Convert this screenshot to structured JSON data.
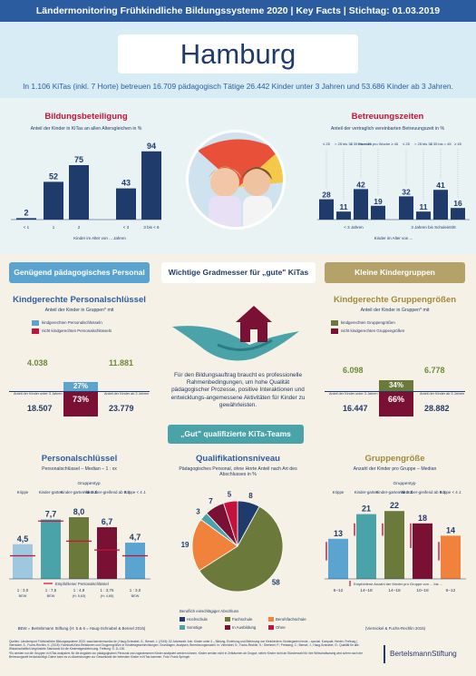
{
  "topbar": {
    "text": "Ländermonitoring Frühkindliche Bildungssysteme 2020  |  Key Facts  |  Stichtag: 01.03.2019"
  },
  "title": "Hamburg",
  "intro": "In 1.106 KiTas (inkl. 7 Horte) betreuen 16.709 pädagogisch Tätige 26.442 Kinder unter 3 Jahren und 53.686 Kinder ab 3 Jahren.",
  "colors": {
    "navy": "#1f3b6b",
    "blue": "#2b5ca0",
    "teal": "#4aa3a8",
    "green": "#5f8a3a",
    "olive": "#6b7a3a",
    "red": "#c4133a",
    "orange": "#f0823c",
    "darkred": "#7a1034",
    "ochre": "#b5a269",
    "sky": "#5aa4cf"
  },
  "bildungsbeteiligung": {
    "title": "Bildungsbeteiligung",
    "subtitle": "Anteil der Kinder in KiTas an allen Altersgleichen in %",
    "xlabel": "Kinder im Alter von ... Jahren",
    "tick_labels": [
      "< 1",
      "1",
      "2",
      "< 3",
      "3 bis < 6"
    ]
  },
  "betreuungszeiten": {
    "title": "Betreuungszeiten",
    "subtitle": "Anteil der vertraglich vereinbarten Betreuungszeit in %",
    "header_labels": [
      "≤ 25",
      "> 25 bis 35",
      "> 35 bis < 45",
      "Stunden pro Woche ≥ 45"
    ],
    "header_labels_right": [
      "≤ 25",
      "> 25 bis 35",
      "> 35 bis < 45",
      "≥ 45"
    ],
    "group_labels": [
      "< 3 Jahren",
      "3 Jahren bis Schuleintritt"
    ],
    "xlabel": "Kinder im Alter von ..."
  },
  "pills": {
    "left": "Genügend pädagogisches Personal",
    "middle": "Wichtige Gradmesser für „gute\" KiTas",
    "right": "Kleine Kindergruppen",
    "middle2": "„Gut\" qualifizierte KiTa-Teams"
  },
  "personalschluessel_left": {
    "title": "Kindgerechte Personalschlüssel",
    "subtitle": "Anteil der Kinder in Gruppen* mit",
    "legend": [
      "kindgerechten Personalschlüsseln",
      "nicht kindgerechten Personalschlüsseln"
    ],
    "top_values": [
      "4.038",
      "11.881"
    ],
    "pct_good": "27%",
    "pct_bad": "73%",
    "bottom_values": [
      "18.507",
      "23.779"
    ],
    "tick_left": "Anteil der Kinder unter 3 Jahren",
    "tick_right": "Anteil der Kinder ab 3 Jahren"
  },
  "gruppengroessen_right": {
    "title": "Kindgerechte Gruppengrößen",
    "subtitle": "Anteil der Kinder in Gruppen* mit",
    "legend": [
      "kindgerechten Gruppengrößen",
      "nicht kindgerechten Gruppengrößen"
    ],
    "top_values": [
      "6.098",
      "6.778"
    ],
    "pct_good": "34%",
    "pct_bad": "66%",
    "bottom_values": [
      "16.447",
      "28.882"
    ],
    "tick_left": "Anteil der Kinder unter 3 Jahren",
    "tick_right": "Anteil der Kinder ab 3 Jahren"
  },
  "middle_text": "Für den Bildungsauftrag braucht es professionelle Rahmenbedingungen, um hohe Qualität pädagogischer Prozesse, positive Interaktionen und entwicklungs-angemessene Aktivitäten für Kinder zu gewährleisten.",
  "personalschluessel": {
    "title": "Personalschlüssel",
    "subtitle": "Personalschlüssel – Median – 1 : xx",
    "group_label": "Gruppentyp",
    "col_labels": [
      "Krippe",
      "Kinder-garten",
      "Kinder-garten ab 2 J.",
      "Altersüber-greifend ab 0 J.",
      "Krippe < 4 J."
    ],
    "bottom": [
      "1 : 3,0",
      "1 : 7,5",
      "1 : 4,9",
      "1 : 3,75",
      "1 : 3,0"
    ],
    "bottom2": [
      "BEW",
      "BEW",
      "(H: 5,63)",
      "(H: 4,65)",
      "BEW"
    ],
    "legend": "Empfohlener Personalschlüssel",
    "source": "BEW = Bertelsmann Stiftung (H: 5 & 6 = Haug-Schnabel & Bensel 2015)"
  },
  "qualifikation": {
    "title": "Qualifikationsniveau",
    "subtitle": "Pädagogisches Personal, ohne Horte Anteil nach Art des Abschlusses in %",
    "legend_title": "Beruflich einschlägiger Abschluss",
    "legend": [
      "Hochschule",
      "Fachschule",
      "Berufsfachschule",
      "Sonstige",
      "In Ausbildung",
      "Ohne"
    ]
  },
  "gruppengroesse": {
    "title": "Gruppengröße",
    "subtitle": "Anzahl der Kinder pro Gruppe – Median",
    "group_label": "Gruppentyp",
    "col_labels": [
      "Krippe",
      "Kinder-garten",
      "Kinder-garten ab 2 J.",
      "Altersüber-greifend ab 0 J.",
      "Krippe < 4 J."
    ],
    "ranges": [
      "6–12",
      "14–18",
      "14–18",
      "10–18",
      "6–12"
    ],
    "legend": "Empfohlene Anzahl der Kinder pro Gruppe von ... bis ...",
    "source": "(Viernickel & Fuchs-Rechlin 2015)"
  },
  "footer_text": "Quellen: Länderreport Frühkindliche Bildungssysteme 2020, www.laendermonitor.de | Haug-Schnabel, G., Bensel, J. (2015): 52 Jahreszeit. Anh. Kinder unter 3 – Bildung, Erziehung und Betreuung von Kleinkindern. Kindergarten heute – spezial. Kompakt. Herder, Freiburg | Viernickel, S., Fuchs-Rechlin, K. (2015): Fachkraft-Kind-Relationen und Gruppengrößen in Kindertageseinrichtungen. Grundlagen, Analysen, Berechnungsmodell. In: Viernickel, S.; Fuchs-Rechlin, K.; Strehmel, P.; Preissing, C.; Bensel, J., Haug-Schnabel, G.: Qualität für alle. Wissenschaftlich begründete Standards für die Kindertagesbetreuung. Freiburg: S. 11-130.",
  "footer_text2": "*Es werden nur die Gruppen in KiTas analysiert, für die Angaben zur pädagogischen Personal und zugewiesenen Kinder analysiert werden können. Kinder werden nicht in Zeiträumen ab Gruppe; neben Kinder nicht ab Stundenzahl für ihre Wirtschaftszweig wird sofern nach der Betreuungszeit berücksichtigt. Daher kann es zu Abweichungen zur Gesamtzahl der betreuten Kinder in KiTas kommen. Foto: Frank Springer",
  "logo": "BertelsmannStiftung",
  "chart_data": [
    {
      "type": "bar",
      "title": "Bildungsbeteiligung",
      "categories": [
        "< 1",
        "1",
        "2",
        "< 3",
        "3 bis < 6"
      ],
      "values": [
        2,
        52,
        75,
        43,
        94
      ],
      "ylim": [
        0,
        100
      ]
    },
    {
      "type": "bar",
      "title": "Betreuungszeiten",
      "groups": [
        "< 3 Jahren",
        "3 Jahren bis Schuleintritt"
      ],
      "categories": [
        "≤ 25",
        "> 25 bis 35",
        "> 35 bis < 45",
        "≥ 45"
      ],
      "series": [
        {
          "name": "< 3 Jahren",
          "values": [
            28,
            11,
            42,
            19
          ]
        },
        {
          "name": "3 Jahren bis Schuleintritt",
          "values": [
            32,
            11,
            41,
            16
          ]
        }
      ],
      "ylim": [
        0,
        100
      ]
    },
    {
      "type": "bar",
      "title": "Personalschlüssel",
      "categories": [
        "Krippe",
        "Kinder-garten",
        "Kinder-garten ab 2 J.",
        "Altersüber-greifend ab 0 J.",
        "Krippe < 4 J."
      ],
      "values": [
        4.5,
        7.7,
        8.0,
        6.7,
        4.7
      ],
      "labels": [
        "4,5",
        "7,7",
        "8,0",
        "6,7",
        "4,7"
      ],
      "recommended": [
        3.0,
        7.5,
        4.9,
        3.75,
        3.0
      ],
      "ylim": [
        0,
        10
      ]
    },
    {
      "type": "pie",
      "title": "Qualifikationsniveau",
      "categories": [
        "Hochschule",
        "Fachschule",
        "Berufsfachschule",
        "Sonstige",
        "In Ausbildung",
        "Ohne"
      ],
      "values": [
        8,
        58,
        19,
        3,
        7,
        5
      ]
    },
    {
      "type": "bar",
      "title": "Gruppengröße",
      "categories": [
        "Krippe",
        "Kinder-garten",
        "Kinder-garten ab 2 J.",
        "Altersüber-greifend ab 0 J.",
        "Krippe < 4 J."
      ],
      "values": [
        13,
        21,
        22,
        18,
        14
      ],
      "recommended_ranges": [
        [
          6,
          12
        ],
        [
          14,
          18
        ],
        [
          14,
          18
        ],
        [
          10,
          18
        ],
        [
          6,
          12
        ]
      ],
      "ylim": [
        0,
        25
      ]
    }
  ]
}
